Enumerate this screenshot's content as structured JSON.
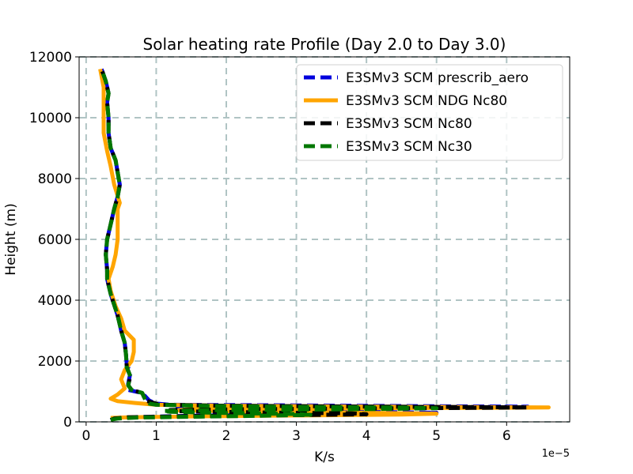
{
  "chart_data": {
    "type": "line",
    "title": "Solar heating rate Profile (Day 2.0 to Day 3.0)",
    "xlabel": "K/s",
    "ylabel": "Height (m)",
    "x_scale_label": "1e−5",
    "x_scale": 1e-05,
    "xlim": [
      -0.1,
      6.9
    ],
    "ylim": [
      0,
      12000
    ],
    "xticks": [
      0,
      1,
      2,
      3,
      4,
      5,
      6
    ],
    "xtick_labels": [
      "0",
      "1",
      "2",
      "3",
      "4",
      "5",
      "6"
    ],
    "yticks": [
      0,
      2000,
      4000,
      6000,
      8000,
      10000,
      12000
    ],
    "ytick_labels": [
      "0",
      "2000",
      "4000",
      "6000",
      "8000",
      "10000",
      "12000"
    ],
    "grid": true,
    "legend_position": "top-right",
    "series": [
      {
        "name": "E3SMv3 SCM prescrib_aero",
        "color": "#0000dd",
        "dashed": true,
        "points": [
          [
            0.35,
            60
          ],
          [
            0.4,
            110
          ],
          [
            0.6,
            150
          ],
          [
            1.5,
            200
          ],
          [
            3.0,
            240
          ],
          [
            4.6,
            270
          ],
          [
            5.0,
            300
          ],
          [
            4.0,
            330
          ],
          [
            2.5,
            360
          ],
          [
            1.3,
            400
          ],
          [
            1.3,
            430
          ],
          [
            2.5,
            450
          ],
          [
            4.0,
            470
          ],
          [
            5.2,
            490
          ],
          [
            6.3,
            500
          ],
          [
            4.5,
            520
          ],
          [
            3.0,
            540
          ],
          [
            1.2,
            560
          ],
          [
            1.0,
            600
          ],
          [
            0.9,
            700
          ],
          [
            0.8,
            950
          ],
          [
            0.6,
            1050
          ],
          [
            0.6,
            1250
          ],
          [
            0.63,
            1600
          ],
          [
            0.58,
            1900
          ],
          [
            0.57,
            2200
          ],
          [
            0.55,
            2600
          ],
          [
            0.5,
            3000
          ],
          [
            0.45,
            3500
          ],
          [
            0.35,
            4200
          ],
          [
            0.3,
            4700
          ],
          [
            0.3,
            5000
          ],
          [
            0.28,
            5500
          ],
          [
            0.3,
            6000
          ],
          [
            0.35,
            6500
          ],
          [
            0.4,
            7000
          ],
          [
            0.45,
            7400
          ],
          [
            0.48,
            7800
          ],
          [
            0.45,
            8200
          ],
          [
            0.42,
            8600
          ],
          [
            0.35,
            9000
          ],
          [
            0.32,
            9500
          ],
          [
            0.32,
            10000
          ],
          [
            0.3,
            10500
          ],
          [
            0.32,
            10800
          ],
          [
            0.28,
            11200
          ],
          [
            0.22,
            11600
          ]
        ]
      },
      {
        "name": "E3SMv3 SCM NDG Nc80",
        "color": "#ffa500",
        "dashed": false,
        "points": [
          [
            0.35,
            130
          ],
          [
            0.6,
            150
          ],
          [
            1.5,
            180
          ],
          [
            3.0,
            210
          ],
          [
            4.5,
            240
          ],
          [
            5.0,
            270
          ],
          [
            4.0,
            300
          ],
          [
            2.5,
            330
          ],
          [
            1.3,
            380
          ],
          [
            1.5,
            420
          ],
          [
            3.0,
            440
          ],
          [
            4.5,
            455
          ],
          [
            6.0,
            465
          ],
          [
            6.6,
            475
          ],
          [
            5.0,
            490
          ],
          [
            3.5,
            510
          ],
          [
            2.0,
            530
          ],
          [
            1.0,
            560
          ],
          [
            0.7,
            620
          ],
          [
            0.45,
            680
          ],
          [
            0.35,
            760
          ],
          [
            0.45,
            900
          ],
          [
            0.55,
            1100
          ],
          [
            0.5,
            1400
          ],
          [
            0.55,
            1700
          ],
          [
            0.65,
            2000
          ],
          [
            0.68,
            2300
          ],
          [
            0.68,
            2700
          ],
          [
            0.55,
            3000
          ],
          [
            0.5,
            3400
          ],
          [
            0.42,
            3800
          ],
          [
            0.35,
            4300
          ],
          [
            0.32,
            4700
          ],
          [
            0.38,
            5100
          ],
          [
            0.42,
            5500
          ],
          [
            0.45,
            6000
          ],
          [
            0.45,
            6500
          ],
          [
            0.45,
            7000
          ],
          [
            0.48,
            7200
          ],
          [
            0.4,
            7800
          ],
          [
            0.35,
            8400
          ],
          [
            0.3,
            8900
          ],
          [
            0.25,
            9500
          ],
          [
            0.25,
            10000
          ],
          [
            0.25,
            10500
          ],
          [
            0.25,
            11000
          ],
          [
            0.2,
            11600
          ]
        ]
      },
      {
        "name": "E3SMv3 SCM Nc80",
        "color": "#000000",
        "dashed": true,
        "points": [
          [
            0.35,
            60
          ],
          [
            0.4,
            110
          ],
          [
            0.6,
            150
          ],
          [
            1.5,
            190
          ],
          [
            3.0,
            220
          ],
          [
            4.0,
            250
          ],
          [
            3.8,
            280
          ],
          [
            2.5,
            310
          ],
          [
            1.3,
            350
          ],
          [
            1.2,
            390
          ],
          [
            2.5,
            420
          ],
          [
            4.0,
            440
          ],
          [
            5.5,
            460
          ],
          [
            6.3,
            475
          ],
          [
            5.0,
            490
          ],
          [
            3.5,
            510
          ],
          [
            2.0,
            530
          ],
          [
            1.1,
            560
          ],
          [
            1.0,
            600
          ],
          [
            0.85,
            700
          ],
          [
            0.8,
            950
          ],
          [
            0.65,
            1050
          ],
          [
            0.6,
            1200
          ],
          [
            0.63,
            1500
          ],
          [
            0.58,
            1800
          ],
          [
            0.57,
            2200
          ],
          [
            0.55,
            2600
          ],
          [
            0.5,
            3000
          ],
          [
            0.45,
            3500
          ],
          [
            0.35,
            4200
          ],
          [
            0.3,
            4700
          ],
          [
            0.3,
            5000
          ],
          [
            0.28,
            5500
          ],
          [
            0.3,
            6000
          ],
          [
            0.35,
            6500
          ],
          [
            0.4,
            7000
          ],
          [
            0.45,
            7400
          ],
          [
            0.48,
            7800
          ],
          [
            0.45,
            8200
          ],
          [
            0.42,
            8600
          ],
          [
            0.35,
            9000
          ],
          [
            0.32,
            9500
          ],
          [
            0.32,
            10000
          ],
          [
            0.3,
            10500
          ],
          [
            0.32,
            10800
          ],
          [
            0.28,
            11200
          ],
          [
            0.22,
            11600
          ]
        ]
      },
      {
        "name": "E3SMv3 SCM Nc30",
        "color": "#007700",
        "dashed": true,
        "points": [
          [
            0.35,
            70
          ],
          [
            0.45,
            110
          ],
          [
            0.7,
            140
          ],
          [
            1.5,
            170
          ],
          [
            2.5,
            200
          ],
          [
            3.2,
            230
          ],
          [
            3.0,
            260
          ],
          [
            2.0,
            290
          ],
          [
            1.2,
            330
          ],
          [
            1.1,
            360
          ],
          [
            2.0,
            390
          ],
          [
            3.5,
            410
          ],
          [
            4.5,
            430
          ],
          [
            5.0,
            450
          ],
          [
            4.5,
            470
          ],
          [
            3.0,
            490
          ],
          [
            1.8,
            520
          ],
          [
            1.0,
            560
          ],
          [
            0.9,
            600
          ],
          [
            0.85,
            700
          ],
          [
            0.8,
            950
          ],
          [
            0.65,
            1050
          ],
          [
            0.6,
            1200
          ],
          [
            0.63,
            1500
          ],
          [
            0.58,
            1800
          ],
          [
            0.57,
            2200
          ],
          [
            0.55,
            2600
          ],
          [
            0.5,
            3000
          ],
          [
            0.45,
            3500
          ],
          [
            0.35,
            4200
          ],
          [
            0.3,
            4700
          ],
          [
            0.3,
            5000
          ],
          [
            0.28,
            5500
          ],
          [
            0.3,
            6000
          ],
          [
            0.35,
            6500
          ],
          [
            0.4,
            7000
          ],
          [
            0.45,
            7400
          ],
          [
            0.48,
            7800
          ],
          [
            0.45,
            8200
          ],
          [
            0.42,
            8600
          ],
          [
            0.35,
            9000
          ],
          [
            0.32,
            9500
          ],
          [
            0.32,
            10000
          ],
          [
            0.3,
            10500
          ],
          [
            0.32,
            10800
          ],
          [
            0.28,
            11200
          ],
          [
            0.22,
            11600
          ]
        ]
      }
    ]
  }
}
